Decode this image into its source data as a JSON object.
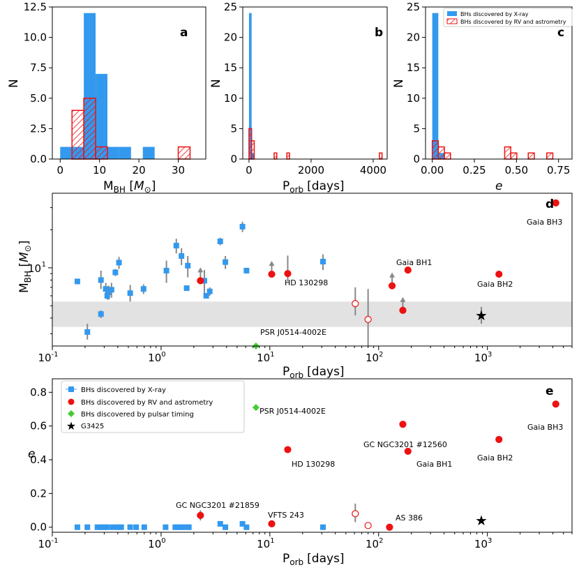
{
  "colors": {
    "xray": "#3399ee",
    "rv": "#ee1111",
    "pulsar": "#44cc33",
    "star": "#000000",
    "band": "#e2e2e2",
    "arrow": "#888888"
  },
  "legend": {
    "xray": "BHs discovered by X-ray",
    "rv": "BHs discovered by RV and astrometry",
    "pulsar": "BHs discovered by pulsar timing",
    "star": "G3425"
  },
  "chart_data": [
    {
      "panel": "a",
      "type": "histogram",
      "xlabel": "M",
      "xlabel_sub": "BH",
      "xlabel_unit": "M",
      "ylabel": "N",
      "xlim": [
        -2,
        37
      ],
      "ylim": [
        0,
        12.5
      ],
      "xticks": [
        "0",
        "10",
        "20",
        "30"
      ],
      "yticks": [
        "0.0",
        "2.5",
        "5.0",
        "7.5",
        "10.0",
        "12.5"
      ],
      "series": [
        {
          "name": "BHs discovered by X-ray",
          "bins": [
            [
              0,
              3,
              1
            ],
            [
              3,
              6,
              1
            ],
            [
              6,
              9,
              12
            ],
            [
              9,
              12,
              7
            ],
            [
              12,
              15,
              1
            ],
            [
              15,
              18,
              1
            ],
            [
              21,
              24,
              1
            ]
          ]
        },
        {
          "name": "BHs discovered by RV and astrometry",
          "bins": [
            [
              3,
              6,
              4
            ],
            [
              6,
              9,
              5
            ],
            [
              9,
              12,
              1
            ],
            [
              30,
              33,
              1
            ]
          ]
        }
      ]
    },
    {
      "panel": "b",
      "type": "histogram",
      "xlabel": "P",
      "xlabel_sub": "orb",
      "xlabel_unit": "[days]",
      "ylabel": "N",
      "xlim": [
        -200,
        4450
      ],
      "ylim": [
        0,
        25
      ],
      "xticks": [
        "0",
        "2000",
        "4000"
      ],
      "yticks": [
        "0",
        "5",
        "10",
        "15",
        "20",
        "25"
      ],
      "series": [
        {
          "name": "BHs discovered by X-ray",
          "bins": [
            [
              0,
              85,
              24
            ],
            [
              85,
              170,
              1
            ]
          ]
        },
        {
          "name": "BHs discovered by RV and astrometry",
          "bins": [
            [
              0,
              85,
              5
            ],
            [
              85,
              170,
              3
            ],
            [
              810,
              895,
              1
            ],
            [
              1220,
              1305,
              1
            ],
            [
              4200,
              4285,
              1
            ]
          ]
        }
      ]
    },
    {
      "panel": "c",
      "type": "histogram",
      "xlabel": "e",
      "ylabel": "N",
      "xlim": [
        -0.04,
        0.83
      ],
      "ylim": [
        0,
        25
      ],
      "xticks": [
        "0.00",
        "0.25",
        "0.50",
        "0.75"
      ],
      "yticks": [
        "0",
        "5",
        "10",
        "15",
        "20",
        "25"
      ],
      "series": [
        {
          "name": "BHs discovered by X-ray",
          "bins": [
            [
              0,
              0.036,
              24
            ],
            [
              0.036,
              0.072,
              1
            ]
          ]
        },
        {
          "name": "BHs discovered by RV and astrometry",
          "bins": [
            [
              0,
              0.036,
              3
            ],
            [
              0.036,
              0.072,
              2
            ],
            [
              0.072,
              0.108,
              1
            ],
            [
              0.43,
              0.466,
              2
            ],
            [
              0.466,
              0.502,
              1
            ],
            [
              0.57,
              0.606,
              1
            ],
            [
              0.68,
              0.716,
              1
            ]
          ]
        }
      ]
    },
    {
      "panel": "d",
      "type": "scatter",
      "xscale": "log",
      "yscale": "log",
      "xlabel": "P",
      "xlabel_sub": "orb",
      "xlabel_unit": "[days]",
      "ylabel": "M",
      "ylabel_sub": "BH",
      "ylabel_unit": "M",
      "xlim": [
        0.1,
        6000
      ],
      "ylim": [
        2.4,
        39
      ],
      "xticks": [
        "10",
        "10",
        "10",
        "10"
      ],
      "xtick_exps": [
        "-1",
        "0",
        "1",
        "2",
        "3"
      ],
      "ytick": "10",
      "ytick_exp": "1",
      "band": [
        3.4,
        5.4
      ],
      "series": [
        {
          "name": "BHs discovered by X-ray",
          "points": [
            [
              0.17,
              7.8,
              7.4,
              8.2
            ],
            [
              0.21,
              3.1,
              2.7,
              3.6
            ],
            [
              0.28,
              8.0,
              6.8,
              9.5
            ],
            [
              0.28,
              4.3,
              4.0,
              4.6
            ],
            [
              0.31,
              6.8,
              6.0,
              7.6
            ],
            [
              0.33,
              6.4,
              5.6,
              7.2
            ],
            [
              0.32,
              6.0,
              5.6,
              6.4
            ],
            [
              0.35,
              6.7,
              5.8,
              7.6
            ],
            [
              0.38,
              9.2,
              8.6,
              9.8
            ],
            [
              0.41,
              11.0,
              9.8,
              12.2
            ],
            [
              0.52,
              6.3,
              5.4,
              7.3
            ],
            [
              0.69,
              6.8,
              6.2,
              7.4
            ],
            [
              1.12,
              9.5,
              7.6,
              11.4
            ],
            [
              1.38,
              15.0,
              13.0,
              17.0
            ],
            [
              1.54,
              12.4,
              10.5,
              14.3
            ],
            [
              1.72,
              6.9,
              6.6,
              7.2
            ],
            [
              1.76,
              10.4,
              8.4,
              12.4
            ],
            [
              2.5,
              7.9,
              6.2,
              9.6
            ],
            [
              2.6,
              6.0,
              5.8,
              6.2
            ],
            [
              2.8,
              6.5,
              6.0,
              7.0
            ],
            [
              3.5,
              16.2,
              15.1,
              17.3
            ],
            [
              3.9,
              11.1,
              9.8,
              12.4
            ],
            [
              5.6,
              21.2,
              19.2,
              23.2
            ],
            [
              6.1,
              9.5,
              9.0,
              10.0
            ],
            [
              30.8,
              11.2,
              9.6,
              12.8
            ]
          ]
        },
        {
          "name": "BHs discovered by RV and astrometry",
          "points": [
            [
              2.3,
              7.9,
              "",
              ""
            ],
            [
              10.4,
              8.9,
              "",
              ""
            ],
            [
              14.6,
              9.0,
              7.8,
              12.5
            ],
            [
              61,
              5.2,
              4.2,
              7.0
            ],
            [
              80,
              3.9,
              2.4,
              6.8
            ],
            [
              133,
              7.2,
              "",
              ""
            ],
            [
              167,
              4.6,
              "",
              ""
            ],
            [
              186,
              9.6,
              "",
              ""
            ],
            [
              1277,
              8.9,
              "",
              ""
            ],
            [
              4253,
              32.7,
              "",
              ""
            ]
          ]
        },
        {
          "name": "BHs discovered by pulsar timing",
          "points": [
            [
              7.45,
              2.4,
              "",
              ""
            ]
          ]
        },
        {
          "name": "G3425",
          "points": [
            [
              880,
              4.2,
              3.6,
              4.9
            ]
          ]
        }
      ],
      "annotations": [
        "Gaia BH3",
        "Gaia BH1",
        "HD 130298",
        "Gaia BH2",
        "PSR J0514-4002E"
      ]
    },
    {
      "panel": "e",
      "type": "scatter",
      "xscale": "log",
      "xlabel": "P",
      "xlabel_sub": "orb",
      "xlabel_unit": "[days]",
      "ylabel": "e",
      "xlim": [
        0.1,
        6000
      ],
      "ylim": [
        -0.03,
        0.88
      ],
      "yticks": [
        "0.0",
        "0.2",
        "0.4",
        "0.6",
        "0.8"
      ],
      "series": [
        {
          "name": "BHs discovered by X-ray",
          "points": [
            [
              0.17,
              0
            ],
            [
              0.21,
              0
            ],
            [
              0.26,
              0
            ],
            [
              0.28,
              0
            ],
            [
              0.3,
              0
            ],
            [
              0.32,
              0
            ],
            [
              0.36,
              0
            ],
            [
              0.4,
              0
            ],
            [
              0.43,
              0
            ],
            [
              0.52,
              0
            ],
            [
              0.59,
              0
            ],
            [
              0.7,
              0
            ],
            [
              1.1,
              0
            ],
            [
              1.35,
              0
            ],
            [
              1.45,
              0
            ],
            [
              1.55,
              0
            ],
            [
              1.7,
              0
            ],
            [
              1.8,
              0
            ],
            [
              3.5,
              0.02
            ],
            [
              3.9,
              0
            ],
            [
              5.6,
              0.02
            ],
            [
              6.1,
              0
            ],
            [
              30.8,
              0
            ]
          ]
        },
        {
          "name": "BHs discovered by RV and astrometry",
          "points": [
            [
              2.3,
              0.07
            ],
            [
              10.4,
              0.02
            ],
            [
              14.6,
              0.46
            ],
            [
              61,
              0.08
            ],
            [
              80,
              0.01
            ],
            [
              126,
              0
            ],
            [
              167,
              0.61
            ],
            [
              186,
              0.45
            ],
            [
              1277,
              0.52
            ],
            [
              4253,
              0.73
            ]
          ]
        },
        {
          "name": "BHs discovered by pulsar timing",
          "points": [
            [
              7.45,
              0.71
            ]
          ]
        },
        {
          "name": "G3425",
          "points": [
            [
              880,
              0.04
            ]
          ]
        }
      ],
      "annotations": [
        "PSR J0514-4002E",
        "GC NGC3201 #12560",
        "Gaia BH3",
        "HD 130298",
        "Gaia BH1",
        "Gaia BH2",
        "GC NGC3201 #21859",
        "VFTS 243",
        "AS 386"
      ]
    }
  ]
}
